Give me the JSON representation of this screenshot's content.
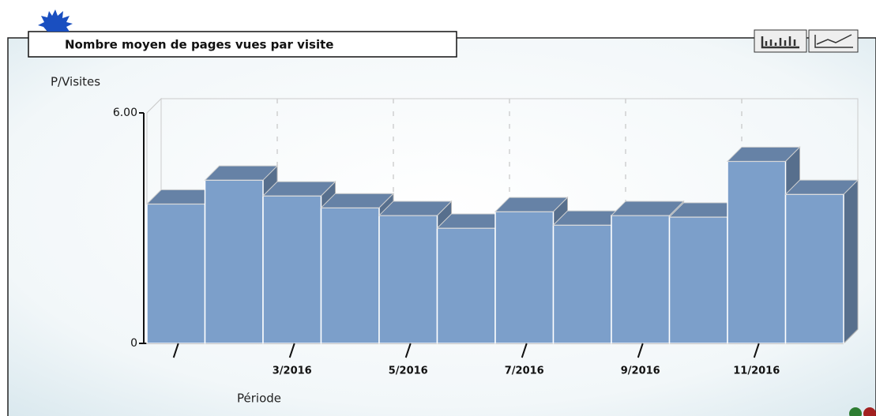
{
  "chart_data": {
    "type": "bar3d",
    "title": "Nombre moyen de pages vues par visite",
    "ylabel": "P/Visites",
    "xlabel": "Période",
    "categories": [
      null,
      null,
      "3/2016",
      null,
      "5/2016",
      null,
      "7/2016",
      null,
      "9/2016",
      null,
      "11/2016",
      null
    ],
    "values": [
      3.63,
      4.25,
      3.84,
      3.53,
      3.33,
      3.0,
      3.43,
      3.08,
      3.33,
      3.29,
      4.74,
      3.88
    ],
    "color": "#7c9fca",
    "ylim": [
      0,
      6
    ],
    "yticks": [
      0,
      {
        "value": 6,
        "label": "6.00"
      }
    ],
    "grid": true
  }
}
